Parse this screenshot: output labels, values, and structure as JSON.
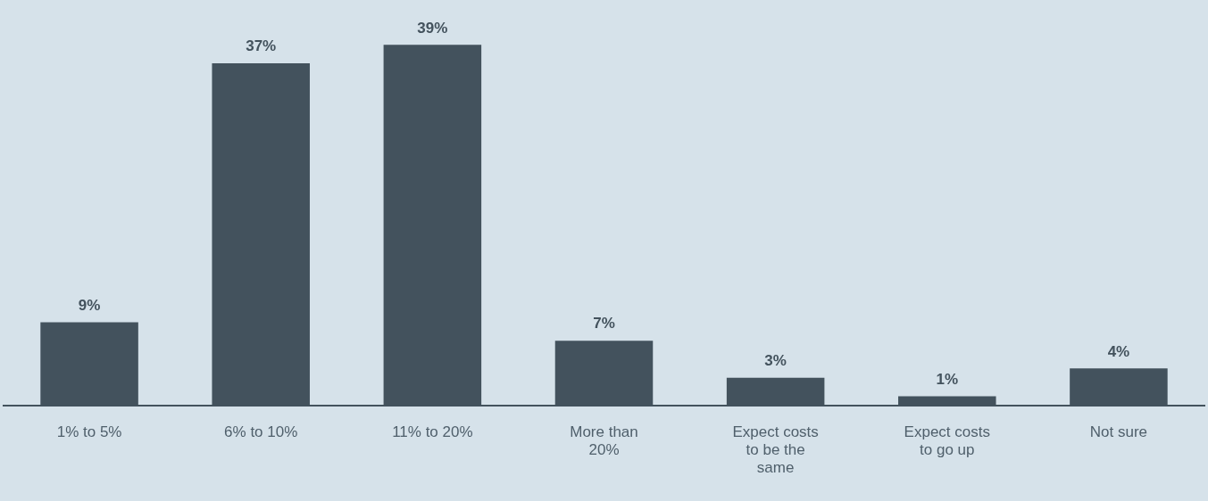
{
  "chart_data": {
    "type": "bar",
    "categories": [
      "1% to 5%",
      "6% to 10%",
      "11% to 20%",
      "More than 20%",
      "Expect costs to be the same",
      "Expect costs to go up",
      "Not sure"
    ],
    "values": [
      9,
      37,
      39,
      7,
      3,
      1,
      4
    ],
    "value_labels": [
      "9%",
      "37%",
      "39%",
      "7%",
      "3%",
      "1%",
      "4%"
    ],
    "color": "#43525d",
    "ylim": [
      0,
      40
    ],
    "grid": false,
    "data_labels": true,
    "tick_labels": "x"
  }
}
